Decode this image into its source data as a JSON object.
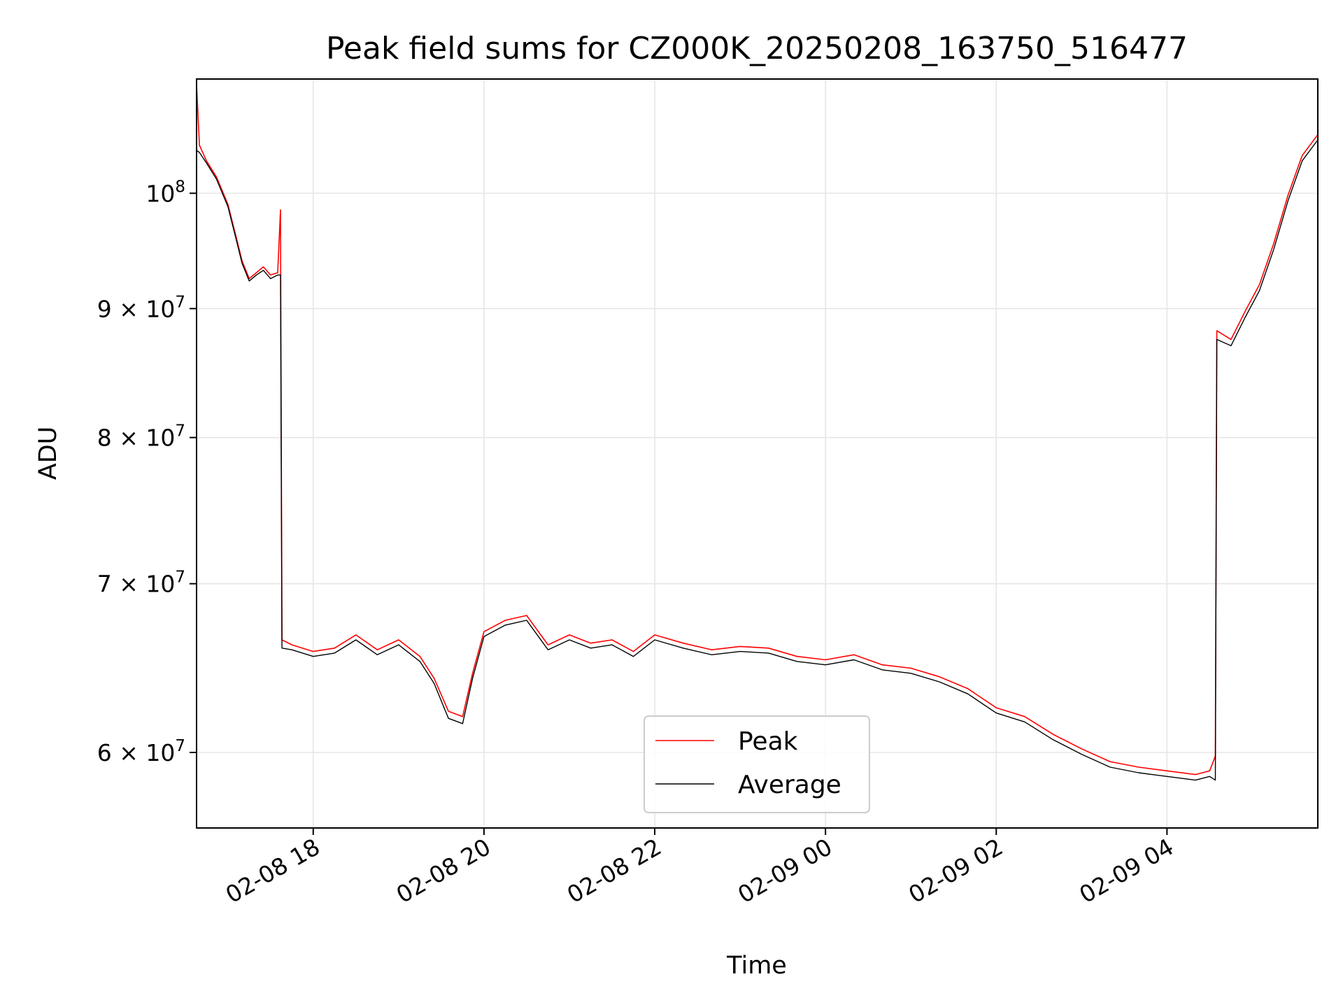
{
  "chart_data": {
    "type": "line",
    "title": "Peak field sums for CZ000K_20250208_163750_516477",
    "xlabel": "Time",
    "ylabel": "ADU",
    "yscale": "log",
    "xlim": [
      "2025-02-08 16:38",
      "2025-02-09 05:46"
    ],
    "ylim": [
      56000000,
      111000000
    ],
    "x_ticks": [
      {
        "t": "2025-02-08 18:00",
        "label": "02-08 18"
      },
      {
        "t": "2025-02-08 20:00",
        "label": "02-08 20"
      },
      {
        "t": "2025-02-08 22:00",
        "label": "02-08 22"
      },
      {
        "t": "2025-02-09 00:00",
        "label": "02-09 00"
      },
      {
        "t": "2025-02-09 02:00",
        "label": "02-09 02"
      },
      {
        "t": "2025-02-09 04:00",
        "label": "02-09 04"
      }
    ],
    "y_ticks": [
      {
        "value": 60000000,
        "mantissa": "6",
        "base": "10",
        "exp": "7"
      },
      {
        "value": 70000000,
        "mantissa": "7",
        "base": "10",
        "exp": "7"
      },
      {
        "value": 80000000,
        "mantissa": "8",
        "base": "10",
        "exp": "7"
      },
      {
        "value": 90000000,
        "mantissa": "9",
        "base": "10",
        "exp": "7"
      },
      {
        "value": 100000000,
        "mantissa": "",
        "base": "10",
        "exp": "8"
      }
    ],
    "grid": true,
    "legend": "lower center",
    "series": [
      {
        "name": "Peak",
        "color": "#ff0000",
        "points": [
          [
            "2025-02-08 16:38",
            110500000
          ],
          [
            "2025-02-08 16:40",
            104500000
          ],
          [
            "2025-02-08 16:45",
            103000000
          ],
          [
            "2025-02-08 16:52",
            101500000
          ],
          [
            "2025-02-08 17:00",
            99000000
          ],
          [
            "2025-02-08 17:05",
            96500000
          ],
          [
            "2025-02-08 17:10",
            94000000
          ],
          [
            "2025-02-08 17:15",
            92500000
          ],
          [
            "2025-02-08 17:20",
            93000000
          ],
          [
            "2025-02-08 17:25",
            93500000
          ],
          [
            "2025-02-08 17:30",
            92800000
          ],
          [
            "2025-02-08 17:35",
            93000000
          ],
          [
            "2025-02-08 17:37",
            98500000
          ],
          [
            "2025-02-08 17:38",
            66500000
          ],
          [
            "2025-02-08 17:45",
            66200000
          ],
          [
            "2025-02-08 18:00",
            65800000
          ],
          [
            "2025-02-08 18:15",
            66000000
          ],
          [
            "2025-02-08 18:30",
            66800000
          ],
          [
            "2025-02-08 18:45",
            65900000
          ],
          [
            "2025-02-08 19:00",
            66500000
          ],
          [
            "2025-02-08 19:15",
            65500000
          ],
          [
            "2025-02-08 19:25",
            64200000
          ],
          [
            "2025-02-08 19:35",
            62300000
          ],
          [
            "2025-02-08 19:45",
            62000000
          ],
          [
            "2025-02-08 19:52",
            64500000
          ],
          [
            "2025-02-08 20:00",
            67000000
          ],
          [
            "2025-02-08 20:15",
            67700000
          ],
          [
            "2025-02-08 20:30",
            68000000
          ],
          [
            "2025-02-08 20:45",
            66200000
          ],
          [
            "2025-02-08 21:00",
            66800000
          ],
          [
            "2025-02-08 21:15",
            66300000
          ],
          [
            "2025-02-08 21:30",
            66500000
          ],
          [
            "2025-02-08 21:45",
            65800000
          ],
          [
            "2025-02-08 22:00",
            66800000
          ],
          [
            "2025-02-08 22:20",
            66300000
          ],
          [
            "2025-02-08 22:40",
            65900000
          ],
          [
            "2025-02-08 23:00",
            66100000
          ],
          [
            "2025-02-08 23:20",
            66000000
          ],
          [
            "2025-02-08 23:40",
            65500000
          ],
          [
            "2025-02-09 00:00",
            65300000
          ],
          [
            "2025-02-09 00:20",
            65600000
          ],
          [
            "2025-02-09 00:40",
            65000000
          ],
          [
            "2025-02-09 01:00",
            64800000
          ],
          [
            "2025-02-09 01:20",
            64300000
          ],
          [
            "2025-02-09 01:40",
            63600000
          ],
          [
            "2025-02-09 02:00",
            62500000
          ],
          [
            "2025-02-09 02:20",
            62000000
          ],
          [
            "2025-02-09 02:40",
            61000000
          ],
          [
            "2025-02-09 03:00",
            60200000
          ],
          [
            "2025-02-09 03:20",
            59500000
          ],
          [
            "2025-02-09 03:40",
            59200000
          ],
          [
            "2025-02-09 04:00",
            59000000
          ],
          [
            "2025-02-09 04:20",
            58800000
          ],
          [
            "2025-02-09 04:30",
            59000000
          ],
          [
            "2025-02-09 04:34",
            59800000
          ],
          [
            "2025-02-09 04:35",
            88200000
          ],
          [
            "2025-02-09 04:45",
            87500000
          ],
          [
            "2025-02-09 04:55",
            89800000
          ],
          [
            "2025-02-09 05:05",
            92000000
          ],
          [
            "2025-02-09 05:15",
            95500000
          ],
          [
            "2025-02-09 05:25",
            99800000
          ],
          [
            "2025-02-09 05:35",
            103500000
          ],
          [
            "2025-02-09 05:46",
            105500000
          ]
        ]
      },
      {
        "name": "Average",
        "color": "#000000",
        "points": [
          [
            "2025-02-08 16:38",
            104000000
          ],
          [
            "2025-02-08 16:40",
            103800000
          ],
          [
            "2025-02-08 16:45",
            102800000
          ],
          [
            "2025-02-08 16:52",
            101300000
          ],
          [
            "2025-02-08 17:00",
            98800000
          ],
          [
            "2025-02-08 17:05",
            96300000
          ],
          [
            "2025-02-08 17:10",
            93800000
          ],
          [
            "2025-02-08 17:15",
            92300000
          ],
          [
            "2025-02-08 17:20",
            92800000
          ],
          [
            "2025-02-08 17:25",
            93200000
          ],
          [
            "2025-02-08 17:30",
            92500000
          ],
          [
            "2025-02-08 17:35",
            92800000
          ],
          [
            "2025-02-08 17:37",
            92800000
          ],
          [
            "2025-02-08 17:38",
            66000000
          ],
          [
            "2025-02-08 17:45",
            65900000
          ],
          [
            "2025-02-08 18:00",
            65500000
          ],
          [
            "2025-02-08 18:15",
            65700000
          ],
          [
            "2025-02-08 18:30",
            66500000
          ],
          [
            "2025-02-08 18:45",
            65600000
          ],
          [
            "2025-02-08 19:00",
            66200000
          ],
          [
            "2025-02-08 19:15",
            65200000
          ],
          [
            "2025-02-08 19:25",
            63900000
          ],
          [
            "2025-02-08 19:35",
            61900000
          ],
          [
            "2025-02-08 19:45",
            61600000
          ],
          [
            "2025-02-08 19:52",
            64200000
          ],
          [
            "2025-02-08 20:00",
            66700000
          ],
          [
            "2025-02-08 20:15",
            67400000
          ],
          [
            "2025-02-08 20:30",
            67700000
          ],
          [
            "2025-02-08 20:45",
            65900000
          ],
          [
            "2025-02-08 21:00",
            66500000
          ],
          [
            "2025-02-08 21:15",
            66000000
          ],
          [
            "2025-02-08 21:30",
            66200000
          ],
          [
            "2025-02-08 21:45",
            65500000
          ],
          [
            "2025-02-08 22:00",
            66500000
          ],
          [
            "2025-02-08 22:20",
            66000000
          ],
          [
            "2025-02-08 22:40",
            65600000
          ],
          [
            "2025-02-08 23:00",
            65800000
          ],
          [
            "2025-02-08 23:20",
            65700000
          ],
          [
            "2025-02-08 23:40",
            65200000
          ],
          [
            "2025-02-09 00:00",
            65000000
          ],
          [
            "2025-02-09 00:20",
            65300000
          ],
          [
            "2025-02-09 00:40",
            64700000
          ],
          [
            "2025-02-09 01:00",
            64500000
          ],
          [
            "2025-02-09 01:20",
            64000000
          ],
          [
            "2025-02-09 01:40",
            63300000
          ],
          [
            "2025-02-09 02:00",
            62200000
          ],
          [
            "2025-02-09 02:20",
            61700000
          ],
          [
            "2025-02-09 02:40",
            60700000
          ],
          [
            "2025-02-09 03:00",
            59900000
          ],
          [
            "2025-02-09 03:20",
            59200000
          ],
          [
            "2025-02-09 03:40",
            58900000
          ],
          [
            "2025-02-09 04:00",
            58700000
          ],
          [
            "2025-02-09 04:20",
            58500000
          ],
          [
            "2025-02-09 04:30",
            58700000
          ],
          [
            "2025-02-09 04:34",
            58500000
          ],
          [
            "2025-02-09 04:35",
            87500000
          ],
          [
            "2025-02-09 04:45",
            87000000
          ],
          [
            "2025-02-09 04:55",
            89300000
          ],
          [
            "2025-02-09 05:05",
            91500000
          ],
          [
            "2025-02-09 05:15",
            95000000
          ],
          [
            "2025-02-09 05:25",
            99300000
          ],
          [
            "2025-02-09 05:35",
            103000000
          ],
          [
            "2025-02-09 05:46",
            105000000
          ]
        ]
      }
    ]
  }
}
